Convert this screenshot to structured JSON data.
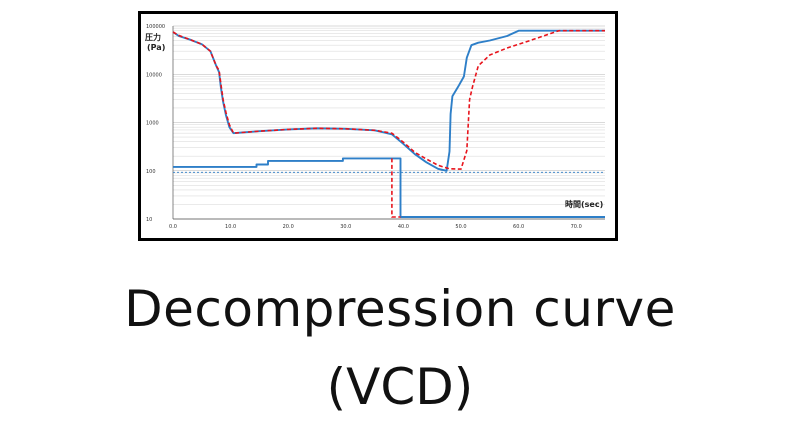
{
  "chart_data": {
    "type": "line",
    "title": "",
    "ylabel": "圧力 (Pa)",
    "ylabel_line1": "圧力",
    "ylabel_line2": "(Pa)",
    "xlabel": "時間(sec)",
    "y_scale": "log",
    "ylim": [
      10,
      100000
    ],
    "xlim": [
      0,
      75
    ],
    "x_ticks": [
      "0.0",
      "10.0",
      "20.0",
      "30.0",
      "40.0",
      "50.0",
      "60.0",
      "70.0"
    ],
    "x_tick_values": [
      0,
      10,
      20,
      30,
      40,
      50,
      60,
      70
    ],
    "y_ticks": [
      "100000",
      "10000",
      "1000",
      "100",
      "10"
    ],
    "y_tick_values": [
      100000,
      10000,
      1000,
      100,
      10
    ],
    "grid": true,
    "series": [
      {
        "style": "solid",
        "color": "#2e7fc8",
        "x": [
          0,
          1,
          3,
          5,
          6.5,
          7.5,
          8,
          8.3,
          8.7,
          9.2,
          9.8,
          10.5,
          12,
          15,
          20,
          25,
          30,
          35,
          38,
          40,
          42,
          44,
          46,
          47.5,
          48,
          48.2,
          48.5,
          49.5,
          50.5,
          51,
          51.8,
          53,
          55,
          58,
          60,
          62,
          65,
          75
        ],
        "y": [
          75000,
          62000,
          52000,
          42000,
          30000,
          15000,
          11000,
          5500,
          2700,
          1400,
          800,
          600,
          620,
          660,
          720,
          760,
          740,
          690,
          570,
          360,
          220,
          150,
          110,
          100,
          250,
          1500,
          3500,
          5500,
          9000,
          22000,
          40000,
          45000,
          50000,
          62000,
          80000,
          80000,
          80000,
          80000
        ]
      },
      {
        "style": "dashed",
        "color": "#e8141c",
        "x": [
          0,
          1,
          3,
          5,
          6.5,
          7.5,
          8,
          8.3,
          8.7,
          9.2,
          9.8,
          10.5,
          12,
          15,
          20,
          25,
          30,
          35,
          38,
          40,
          42,
          44,
          46,
          48,
          50,
          51,
          51.5,
          52,
          53,
          55,
          58,
          62,
          67,
          75
        ],
        "y": [
          75000,
          64000,
          52000,
          42000,
          30000,
          15000,
          12000,
          6500,
          3000,
          1600,
          900,
          600,
          620,
          660,
          720,
          760,
          740,
          690,
          600,
          390,
          240,
          175,
          130,
          110,
          108,
          260,
          3000,
          5500,
          15000,
          25000,
          35000,
          50000,
          80000,
          80000
        ]
      },
      {
        "style": "solid",
        "color": "#2e7fc8",
        "x": [
          0,
          14.5,
          14.5,
          16.5,
          16.5,
          29.5,
          29.5,
          39.5,
          39.5,
          75
        ],
        "y": [
          120,
          120,
          135,
          135,
          160,
          160,
          180,
          180,
          11,
          11
        ]
      },
      {
        "style": "dashed",
        "color": "#e8141c",
        "x": [
          38,
          38,
          39.5
        ],
        "y": [
          180,
          11,
          11
        ]
      },
      {
        "style": "dashed",
        "color": "#2e7fc8",
        "x": [
          0,
          75
        ],
        "y": [
          93,
          93
        ]
      }
    ]
  },
  "caption": {
    "line1": "Decompression curve",
    "line2": "(VCD)"
  }
}
